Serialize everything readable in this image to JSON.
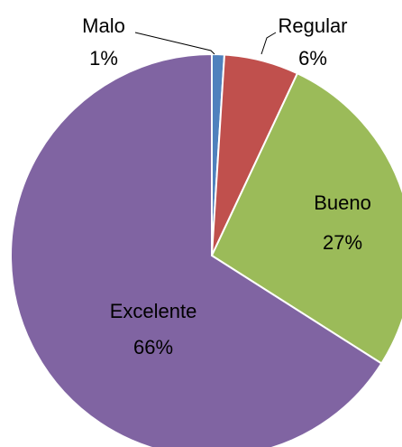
{
  "chart_data": {
    "type": "pie",
    "categories": [
      "Malo",
      "Regular",
      "Bueno",
      "Excelente"
    ],
    "values": [
      1,
      6,
      27,
      66
    ],
    "value_labels": [
      "1%",
      "6%",
      "27%",
      "66%"
    ],
    "colors": [
      "#4f81bd",
      "#c0504d",
      "#9bbb59",
      "#8064a2"
    ]
  }
}
